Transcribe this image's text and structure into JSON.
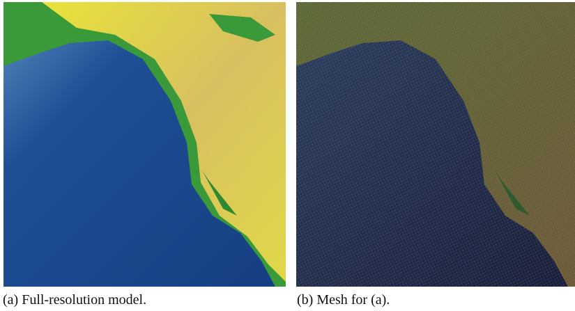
{
  "figure": {
    "panels": [
      {
        "caption": "(a) Full-resolution model."
      },
      {
        "caption": "(b) Mesh for (a)."
      }
    ]
  }
}
